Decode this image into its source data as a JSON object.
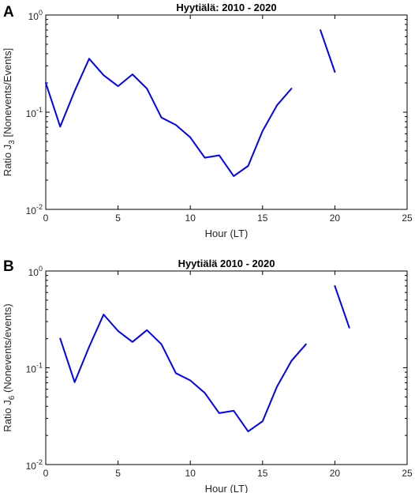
{
  "chart_data": [
    {
      "panel_label": "A",
      "type": "line",
      "title": "Hyytiälä: 2010 - 2020",
      "xlabel": "Hour (LT)",
      "ylabel": {
        "base": "Ratio J",
        "sub": "3",
        "rest": " [Nonevents/Events]"
      },
      "xlim": [
        0,
        25
      ],
      "ylim": [
        0.01,
        1
      ],
      "yscale": "log",
      "xticks": [
        0,
        5,
        10,
        15,
        20,
        25
      ],
      "xtick_labels": [
        "0",
        "5",
        "10",
        "15",
        "20",
        "25"
      ],
      "yticks": [
        0.01,
        0.1,
        1
      ],
      "ytick_labels": [
        {
          "base": "10",
          "exp": "-2"
        },
        {
          "base": "10",
          "exp": "-1"
        },
        {
          "base": "10",
          "exp": "0"
        }
      ],
      "grid": false,
      "color": "#0000ff",
      "segments": [
        {
          "x": [
            0,
            1,
            2,
            3,
            4,
            5,
            6,
            7,
            8,
            9,
            10,
            11,
            12,
            13,
            14,
            15,
            16,
            17
          ],
          "y": [
            0.2,
            0.071,
            0.165,
            0.355,
            0.24,
            0.185,
            0.245,
            0.175,
            0.088,
            0.074,
            0.055,
            0.034,
            0.036,
            0.022,
            0.028,
            0.064,
            0.118,
            0.175
          ]
        },
        {
          "x": [
            19,
            20
          ],
          "y": [
            0.7,
            0.26
          ]
        }
      ]
    },
    {
      "panel_label": "B",
      "type": "line",
      "title": "Hyytiälä 2010 - 2020",
      "xlabel": "Hour (LT)",
      "ylabel": {
        "base": "Ratio J",
        "sub": "6",
        "rest": " (Nonevents/events)"
      },
      "xlim": [
        0,
        25
      ],
      "ylim": [
        0.01,
        1
      ],
      "yscale": "log",
      "xticks": [
        0,
        5,
        10,
        15,
        20,
        25
      ],
      "xtick_labels": [
        "0",
        "5",
        "10",
        "15",
        "20",
        "25"
      ],
      "yticks": [
        0.01,
        0.1,
        1
      ],
      "ytick_labels": [
        {
          "base": "10",
          "exp": "-2"
        },
        {
          "base": "10",
          "exp": "-1"
        },
        {
          "base": "10",
          "exp": "0"
        }
      ],
      "grid": false,
      "color": "#0000ff",
      "segments": [
        {
          "x": [
            1,
            2,
            3,
            4,
            5,
            6,
            7,
            8,
            9,
            10,
            11,
            12,
            13,
            14,
            15,
            16,
            17,
            18
          ],
          "y": [
            0.2,
            0.071,
            0.165,
            0.355,
            0.24,
            0.185,
            0.245,
            0.175,
            0.088,
            0.074,
            0.055,
            0.034,
            0.036,
            0.022,
            0.028,
            0.064,
            0.118,
            0.175
          ]
        },
        {
          "x": [
            20,
            21
          ],
          "y": [
            0.7,
            0.26
          ]
        }
      ]
    }
  ]
}
